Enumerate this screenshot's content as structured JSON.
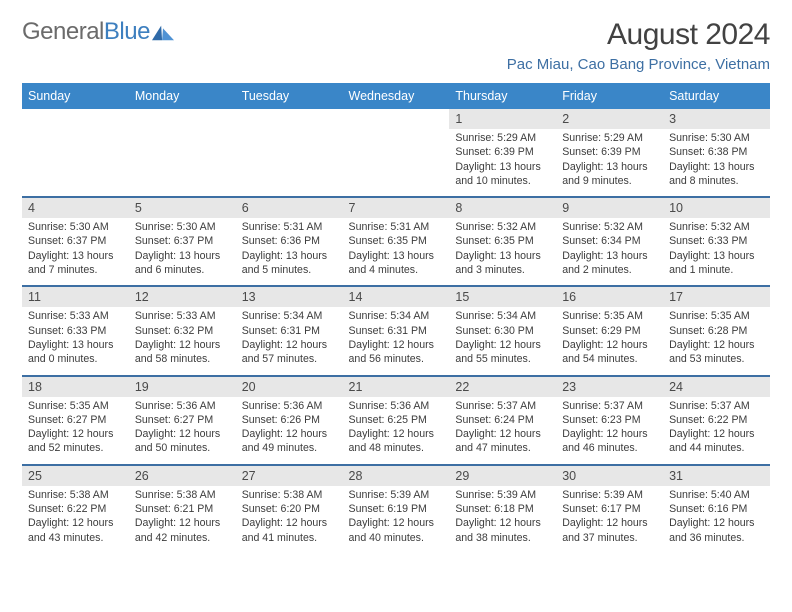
{
  "logo": {
    "word1": "General",
    "word2": "Blue"
  },
  "header": {
    "title": "August 2024",
    "location": "Pac Miau, Cao Bang Province, Vietnam"
  },
  "columns": [
    "Sunday",
    "Monday",
    "Tuesday",
    "Wednesday",
    "Thursday",
    "Friday",
    "Saturday"
  ],
  "colors": {
    "header_bg": "#3a86c8",
    "header_text": "#ffffff",
    "daynum_bg": "#e7e7e7",
    "border": "#3d6fa3",
    "title": "#424242",
    "location": "#3d6fa3",
    "body_text": "#3c3c3c"
  },
  "fonts": {
    "title_size": 30,
    "location_size": 15,
    "header_size": 12.5,
    "daynum_size": 12.5,
    "detail_size": 10.6
  },
  "weeks": [
    {
      "nums": [
        "",
        "",
        "",
        "",
        "1",
        "2",
        "3"
      ],
      "details": [
        "",
        "",
        "",
        "",
        "Sunrise: 5:29 AM\nSunset: 6:39 PM\nDaylight: 13 hours and 10 minutes.",
        "Sunrise: 5:29 AM\nSunset: 6:39 PM\nDaylight: 13 hours and 9 minutes.",
        "Sunrise: 5:30 AM\nSunset: 6:38 PM\nDaylight: 13 hours and 8 minutes."
      ]
    },
    {
      "nums": [
        "4",
        "5",
        "6",
        "7",
        "8",
        "9",
        "10"
      ],
      "details": [
        "Sunrise: 5:30 AM\nSunset: 6:37 PM\nDaylight: 13 hours and 7 minutes.",
        "Sunrise: 5:30 AM\nSunset: 6:37 PM\nDaylight: 13 hours and 6 minutes.",
        "Sunrise: 5:31 AM\nSunset: 6:36 PM\nDaylight: 13 hours and 5 minutes.",
        "Sunrise: 5:31 AM\nSunset: 6:35 PM\nDaylight: 13 hours and 4 minutes.",
        "Sunrise: 5:32 AM\nSunset: 6:35 PM\nDaylight: 13 hours and 3 minutes.",
        "Sunrise: 5:32 AM\nSunset: 6:34 PM\nDaylight: 13 hours and 2 minutes.",
        "Sunrise: 5:32 AM\nSunset: 6:33 PM\nDaylight: 13 hours and 1 minute."
      ]
    },
    {
      "nums": [
        "11",
        "12",
        "13",
        "14",
        "15",
        "16",
        "17"
      ],
      "details": [
        "Sunrise: 5:33 AM\nSunset: 6:33 PM\nDaylight: 13 hours and 0 minutes.",
        "Sunrise: 5:33 AM\nSunset: 6:32 PM\nDaylight: 12 hours and 58 minutes.",
        "Sunrise: 5:34 AM\nSunset: 6:31 PM\nDaylight: 12 hours and 57 minutes.",
        "Sunrise: 5:34 AM\nSunset: 6:31 PM\nDaylight: 12 hours and 56 minutes.",
        "Sunrise: 5:34 AM\nSunset: 6:30 PM\nDaylight: 12 hours and 55 minutes.",
        "Sunrise: 5:35 AM\nSunset: 6:29 PM\nDaylight: 12 hours and 54 minutes.",
        "Sunrise: 5:35 AM\nSunset: 6:28 PM\nDaylight: 12 hours and 53 minutes."
      ]
    },
    {
      "nums": [
        "18",
        "19",
        "20",
        "21",
        "22",
        "23",
        "24"
      ],
      "details": [
        "Sunrise: 5:35 AM\nSunset: 6:27 PM\nDaylight: 12 hours and 52 minutes.",
        "Sunrise: 5:36 AM\nSunset: 6:27 PM\nDaylight: 12 hours and 50 minutes.",
        "Sunrise: 5:36 AM\nSunset: 6:26 PM\nDaylight: 12 hours and 49 minutes.",
        "Sunrise: 5:36 AM\nSunset: 6:25 PM\nDaylight: 12 hours and 48 minutes.",
        "Sunrise: 5:37 AM\nSunset: 6:24 PM\nDaylight: 12 hours and 47 minutes.",
        "Sunrise: 5:37 AM\nSunset: 6:23 PM\nDaylight: 12 hours and 46 minutes.",
        "Sunrise: 5:37 AM\nSunset: 6:22 PM\nDaylight: 12 hours and 44 minutes."
      ]
    },
    {
      "nums": [
        "25",
        "26",
        "27",
        "28",
        "29",
        "30",
        "31"
      ],
      "details": [
        "Sunrise: 5:38 AM\nSunset: 6:22 PM\nDaylight: 12 hours and 43 minutes.",
        "Sunrise: 5:38 AM\nSunset: 6:21 PM\nDaylight: 12 hours and 42 minutes.",
        "Sunrise: 5:38 AM\nSunset: 6:20 PM\nDaylight: 12 hours and 41 minutes.",
        "Sunrise: 5:39 AM\nSunset: 6:19 PM\nDaylight: 12 hours and 40 minutes.",
        "Sunrise: 5:39 AM\nSunset: 6:18 PM\nDaylight: 12 hours and 38 minutes.",
        "Sunrise: 5:39 AM\nSunset: 6:17 PM\nDaylight: 12 hours and 37 minutes.",
        "Sunrise: 5:40 AM\nSunset: 6:16 PM\nDaylight: 12 hours and 36 minutes."
      ]
    }
  ]
}
